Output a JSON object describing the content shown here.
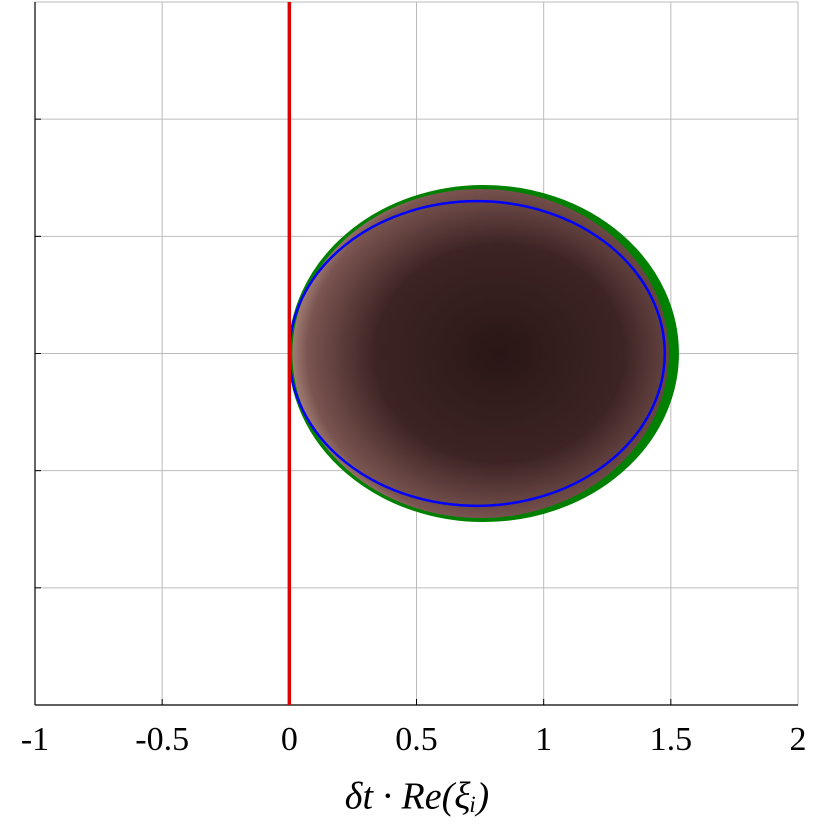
{
  "chart_data": {
    "type": "region",
    "xlabel": "δt · Re(ξᵢ)",
    "xlim": [
      -1,
      2
    ],
    "xticks": [
      -1,
      -0.5,
      0,
      0.5,
      1,
      1.5,
      2
    ],
    "ylim": [
      -1.5,
      1.5
    ],
    "yticks": [
      -1,
      -0.5,
      0,
      0.5,
      1
    ],
    "grid": true,
    "regions": [
      {
        "color": "#008000",
        "center": [
          0.764,
          0
        ],
        "radii": [
          0.764,
          0.715
        ]
      },
      {
        "color": "#0000ff",
        "center": [
          0.738,
          0
        ],
        "radii": [
          0.738,
          0.65
        ]
      }
    ],
    "vline": {
      "x": 0,
      "color": "#dd0000"
    }
  }
}
